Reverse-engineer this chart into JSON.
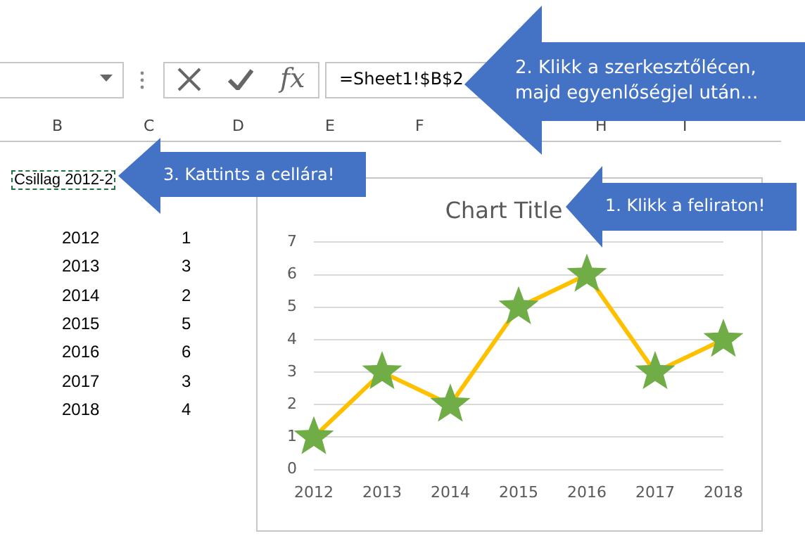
{
  "chart_data": {
    "type": "line",
    "title": "Chart Title",
    "categories": [
      "2012",
      "2013",
      "2014",
      "2015",
      "2016",
      "2017",
      "2018"
    ],
    "series": [
      {
        "color": "#ffc000",
        "colors": [
          "#70ad47",
          "#70ad47",
          "#70ad47",
          "#70ad47",
          "#70ad47",
          "#70ad47",
          "#70ad47"
        ],
        "values": [
          1,
          3,
          2,
          5,
          6,
          3,
          4
        ]
      }
    ],
    "ylim": [
      0,
      7
    ],
    "yticks": [
      0,
      1,
      2,
      3,
      4,
      5,
      6,
      7
    ],
    "grid": "y",
    "legend": false,
    "marker": "star",
    "line_style": "solid",
    "annotations": [
      "=Sheet1!$B$2",
      "2. Klikk a szerkesztőlécen, majd egyenlőségjel után...",
      "3. Kattints a cellára!",
      "1. Klikk a feliraton!",
      "Csillag 2012-2",
      "fx",
      "B",
      "C",
      "D",
      "E",
      "F",
      "H",
      "I",
      "2012",
      "1",
      "2013",
      "3",
      "2014",
      "2",
      "2015",
      "5",
      "2016",
      "6",
      "2017",
      "3",
      "2018",
      "4"
    ]
  }
}
